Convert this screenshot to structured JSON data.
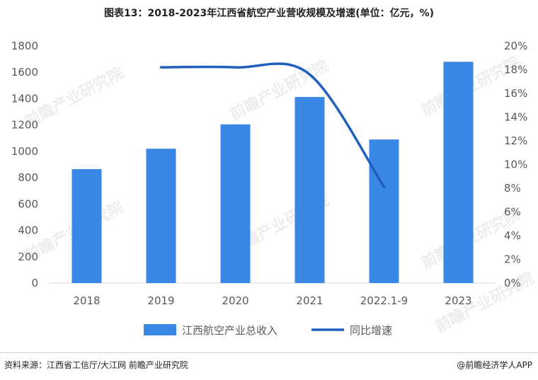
{
  "title": "图表13：2018-2023年江西省航空产业营收规模及增速(单位：亿元，%)",
  "footer": {
    "source": "资料来源：江西省工信厅/大江网 前瞻产业研究院",
    "credit": "@前瞻经济学人APP"
  },
  "watermark": "前瞻产业研究院",
  "colors": {
    "bar": "#3a87e6",
    "line": "#1f5fbf",
    "axis": "#d9d9d9",
    "text": "#595959"
  },
  "chart_data": {
    "type": "bar",
    "categories": [
      "2018",
      "2019",
      "2020",
      "2021",
      "2022.1-9",
      "2023"
    ],
    "series": [
      {
        "name": "江西航空产业总收入",
        "type": "bar",
        "axis": "left",
        "values": [
          865,
          1020,
          1205,
          1413,
          1090,
          1680
        ]
      },
      {
        "name": "同比增速",
        "type": "line",
        "axis": "right",
        "smooth": true,
        "values": [
          null,
          18.2,
          18.2,
          17.6,
          8.1,
          null
        ]
      }
    ],
    "ylim": [
      0,
      1800
    ],
    "yticks": [
      "0",
      "200",
      "400",
      "600",
      "800",
      "1000",
      "1200",
      "1400",
      "1600",
      "1800"
    ],
    "y2lim": [
      0,
      20
    ],
    "y2ticks": [
      "0%",
      "2%",
      "4%",
      "6%",
      "8%",
      "10%",
      "12%",
      "14%",
      "16%",
      "18%",
      "20%"
    ],
    "grid": false,
    "legend": "bottom"
  }
}
